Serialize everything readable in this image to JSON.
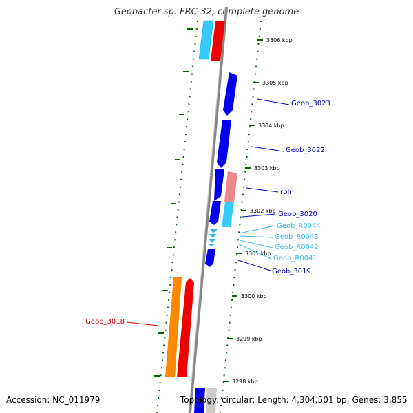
{
  "title": "Geobacter sp. FRC-32, complete genome",
  "accession": "Accession: NC_011979",
  "stats": "Topology: circular; Length: 4,304,501 bp; Genes: 3,855",
  "kbp_ticks": [
    "3306 kbp",
    "3305 kbp",
    "3304 kbp",
    "3303 kbp",
    "3302 kbp",
    "3301 kbp",
    "3300 kbp",
    "3299 kbp",
    "3298 kbp"
  ],
  "gene_labels": [
    {
      "text": "Geob_3023",
      "color": "#0000cc"
    },
    {
      "text": "Geob_3022",
      "color": "#0000cc"
    },
    {
      "text": "rph",
      "color": "#0000cc"
    },
    {
      "text": "Geob_3020",
      "color": "#0000cc"
    },
    {
      "text": "Geob_R0044",
      "color": "#33bbee"
    },
    {
      "text": "Geob_R0043",
      "color": "#33bbee"
    },
    {
      "text": "Geob_R0042",
      "color": "#33bbee"
    },
    {
      "text": "Geob_R0041",
      "color": "#33bbee"
    },
    {
      "text": "Geob_3019",
      "color": "#0000cc"
    },
    {
      "text": "Geob_3018",
      "color": "#cc0000"
    }
  ],
  "colors": {
    "cds_forward": "#0000ee",
    "cds_reverse": "#ee0000",
    "trna": "#33bbee",
    "rrna_light": "#55ccff",
    "other_orange": "#ff8800",
    "pink": "#ee8888",
    "tick_green": "#006600",
    "backbone": "#888888"
  }
}
